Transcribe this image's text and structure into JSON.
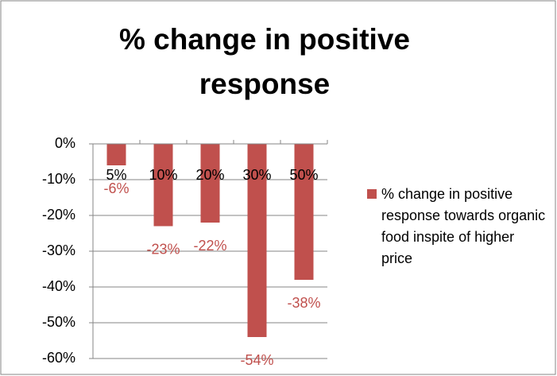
{
  "chart_data": {
    "type": "bar",
    "title": "% change in positive response",
    "categories": [
      "5%",
      "10%",
      "20%",
      "30%",
      "50%"
    ],
    "series": [
      {
        "name": "% change in positive response towards organic food inspite of higher price",
        "color": "#c0504d",
        "values": [
          -6,
          -23,
          -22,
          -54,
          -38
        ],
        "value_labels": [
          "-6%",
          "-23%",
          "-22%",
          "-54%",
          "-38%"
        ]
      }
    ],
    "ylim": [
      -60,
      0
    ],
    "yticks": [
      {
        "value": 0,
        "label": "0%"
      },
      {
        "value": -10,
        "label": "-10%"
      },
      {
        "value": -20,
        "label": "-20%"
      },
      {
        "value": -30,
        "label": "-30%"
      },
      {
        "value": -40,
        "label": "-40%"
      },
      {
        "value": -50,
        "label": "-50%"
      },
      {
        "value": -60,
        "label": "-60%"
      }
    ],
    "grid": true,
    "legend": "right"
  }
}
